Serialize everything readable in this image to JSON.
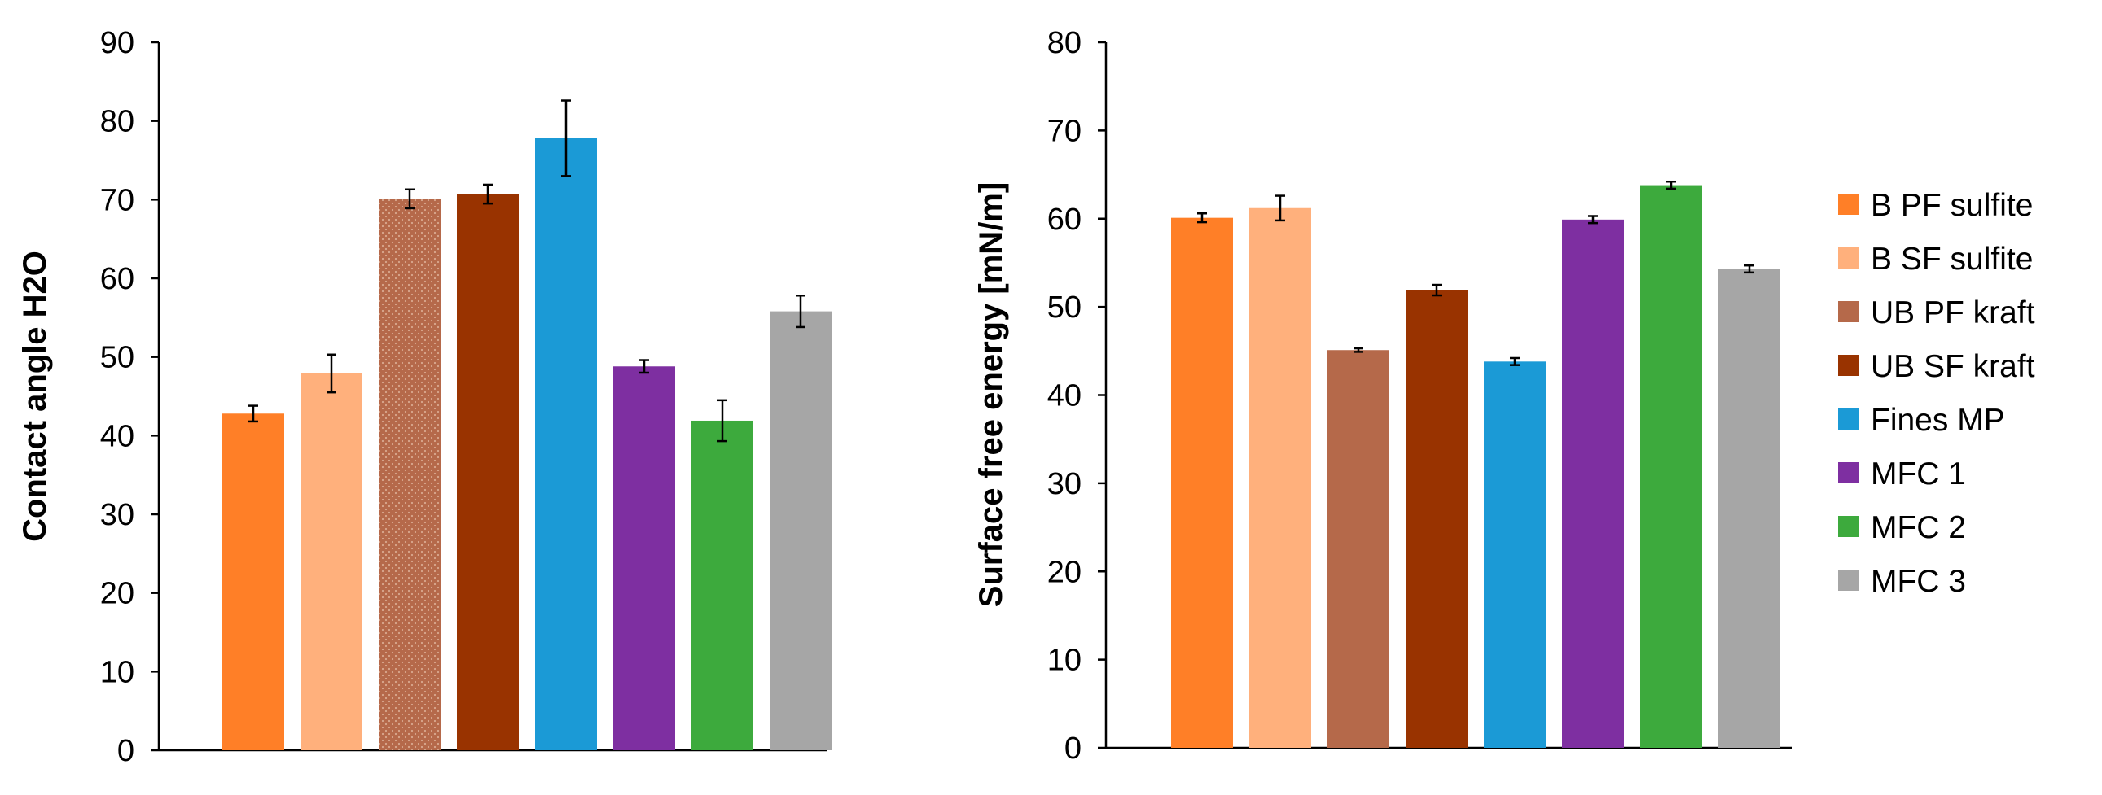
{
  "chart_data": [
    {
      "type": "bar",
      "title": "",
      "xlabel": "",
      "ylabel": "Contact angle H2O",
      "ylim": [
        0,
        90
      ],
      "yticks": [
        0,
        10,
        20,
        30,
        40,
        50,
        60,
        70,
        80,
        90
      ],
      "grid": false,
      "categories": [
        "B PF sulfite",
        "B SF sulfite",
        "UB PF kraft",
        "UB SF kraft",
        "Fines MP",
        "MFC 1",
        "MFC 2",
        "MFC 3"
      ],
      "values": [
        42.8,
        47.9,
        70.1,
        70.7,
        77.8,
        48.8,
        41.9,
        55.8
      ],
      "errors": [
        1.0,
        2.4,
        1.2,
        1.2,
        4.8,
        0.8,
        2.6,
        2.0
      ],
      "colors": [
        "#FF7F27",
        "#FFB07C",
        "#B5694A",
        "#993300",
        "#1B9AD6",
        "#7E2FA1",
        "#3DAA3D",
        "#A6A6A6"
      ],
      "patterned": [
        false,
        false,
        true,
        false,
        false,
        false,
        false,
        false
      ]
    },
    {
      "type": "bar",
      "title": "",
      "xlabel": "",
      "ylabel": "Surface free energy [mN/m]",
      "ylim": [
        0,
        80
      ],
      "yticks": [
        0,
        10,
        20,
        30,
        40,
        50,
        60,
        70,
        80
      ],
      "grid": false,
      "legend_position": "right",
      "categories": [
        "B PF sulfite",
        "B SF sulfite",
        "UB PF kraft",
        "UB SF kraft",
        "Fines MP",
        "MFC 1",
        "MFC 2",
        "MFC 3"
      ],
      "values": [
        60.1,
        61.2,
        45.1,
        51.9,
        43.8,
        59.9,
        63.8,
        54.3
      ],
      "errors": [
        0.5,
        1.4,
        0.2,
        0.6,
        0.4,
        0.4,
        0.4,
        0.4
      ],
      "colors": [
        "#FF7F27",
        "#FFB07C",
        "#B5694A",
        "#993300",
        "#1B9AD6",
        "#7E2FA1",
        "#3DAA3D",
        "#A6A6A6"
      ],
      "legend": [
        "B PF sulfite",
        "B SF sulfite",
        "UB PF kraft",
        "UB SF kraft",
        "Fines MP",
        "MFC 1",
        "MFC 2",
        "MFC 3"
      ]
    }
  ]
}
